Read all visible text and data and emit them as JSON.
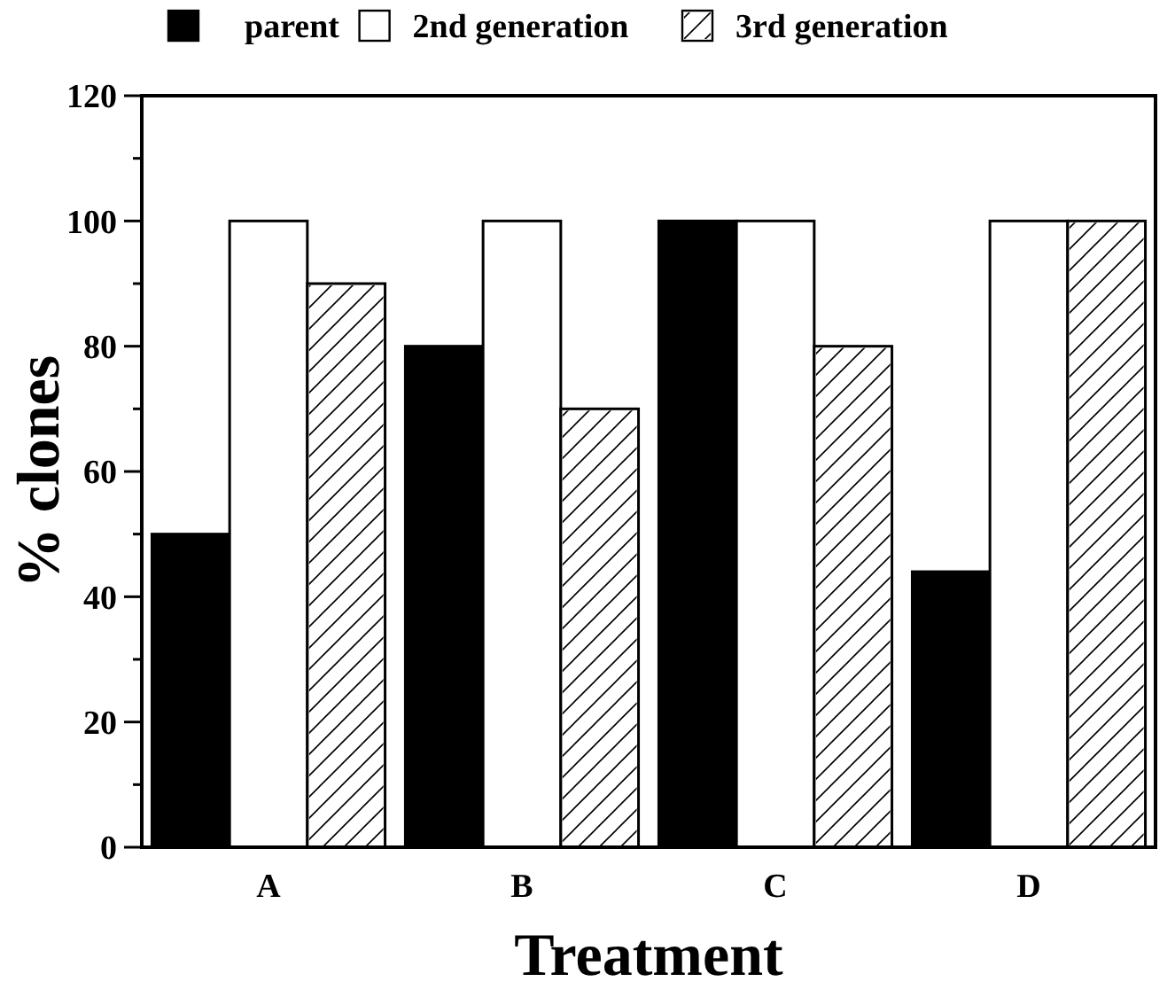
{
  "chart_data": {
    "type": "bar",
    "xlabel": "Treatment",
    "ylabel": "% clones",
    "categories": [
      "A",
      "B",
      "C",
      "D"
    ],
    "series": [
      {
        "name": "parent",
        "color": "#000000",
        "values": [
          50,
          80,
          100,
          44
        ]
      },
      {
        "name": "2nd generation",
        "color": "#ffffff",
        "values": [
          100,
          100,
          100,
          100
        ]
      },
      {
        "name": "3rd generation",
        "color": "#ffffff",
        "values": [
          90,
          70,
          80,
          100
        ]
      }
    ],
    "ylim": [
      0,
      120
    ],
    "yticks": [
      0,
      {
        "value": 10,
        "label": null
      },
      20,
      {
        "value": 30,
        "label": null
      },
      40,
      {
        "value": 50,
        "label": null
      },
      60,
      {
        "value": 70,
        "label": null
      },
      80,
      {
        "value": 90,
        "label": null
      },
      100,
      {
        "value": 110,
        "label": null
      },
      120
    ],
    "legend": "top",
    "grid": false
  }
}
